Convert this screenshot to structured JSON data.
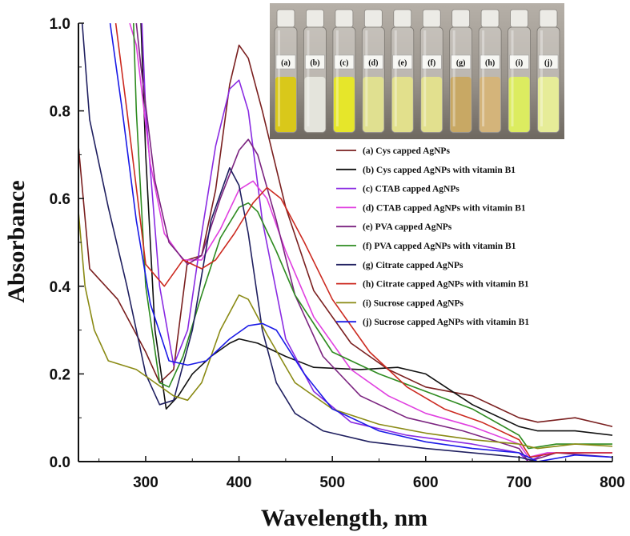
{
  "chart_data": {
    "type": "line",
    "title": "",
    "xlabel": "Wavelength, nm",
    "ylabel": "Absorbance",
    "xlim": [
      228,
      800
    ],
    "ylim": [
      0,
      1.0
    ],
    "x_ticks": [
      300,
      400,
      500,
      600,
      700,
      800
    ],
    "x_tick_labels": [
      "300",
      "400",
      "500",
      "600",
      "700",
      "800"
    ],
    "y_ticks": [
      0.0,
      0.2,
      0.4,
      0.6,
      0.8,
      1.0
    ],
    "y_tick_labels": [
      "0.0",
      "0.2",
      "0.4",
      "0.6",
      "0.8",
      "1.0"
    ],
    "grid": false,
    "legend_position": "right",
    "series": [
      {
        "name": "(a) Cys capped AgNPs",
        "color": "#7a1f1f",
        "points": [
          [
            228,
            0.72
          ],
          [
            240,
            0.44
          ],
          [
            270,
            0.37
          ],
          [
            300,
            0.25
          ],
          [
            315,
            0.18
          ],
          [
            330,
            0.21
          ],
          [
            345,
            0.46
          ],
          [
            360,
            0.47
          ],
          [
            375,
            0.62
          ],
          [
            390,
            0.86
          ],
          [
            400,
            0.95
          ],
          [
            410,
            0.92
          ],
          [
            425,
            0.8
          ],
          [
            450,
            0.58
          ],
          [
            480,
            0.39
          ],
          [
            520,
            0.27
          ],
          [
            560,
            0.21
          ],
          [
            600,
            0.17
          ],
          [
            650,
            0.15
          ],
          [
            700,
            0.1
          ],
          [
            720,
            0.09
          ],
          [
            760,
            0.1
          ],
          [
            790,
            0.085
          ],
          [
            800,
            0.08
          ]
        ]
      },
      {
        "name": "(b) Cys capped AgNPs with vitamin B1",
        "color": "#111111",
        "points": [
          [
            295,
            1.0
          ],
          [
            300,
            0.7
          ],
          [
            310,
            0.3
          ],
          [
            322,
            0.12
          ],
          [
            335,
            0.15
          ],
          [
            350,
            0.2
          ],
          [
            370,
            0.24
          ],
          [
            390,
            0.27
          ],
          [
            400,
            0.28
          ],
          [
            420,
            0.27
          ],
          [
            450,
            0.24
          ],
          [
            480,
            0.215
          ],
          [
            530,
            0.21
          ],
          [
            570,
            0.215
          ],
          [
            600,
            0.2
          ],
          [
            650,
            0.13
          ],
          [
            700,
            0.08
          ],
          [
            720,
            0.07
          ],
          [
            760,
            0.07
          ],
          [
            800,
            0.06
          ]
        ]
      },
      {
        "name": "(c) CTAB capped AgNPs",
        "color": "#8a2be2",
        "points": [
          [
            296,
            1.0
          ],
          [
            300,
            0.8
          ],
          [
            315,
            0.4
          ],
          [
            330,
            0.22
          ],
          [
            345,
            0.3
          ],
          [
            360,
            0.52
          ],
          [
            375,
            0.72
          ],
          [
            390,
            0.85
          ],
          [
            400,
            0.87
          ],
          [
            410,
            0.8
          ],
          [
            425,
            0.55
          ],
          [
            450,
            0.28
          ],
          [
            480,
            0.16
          ],
          [
            520,
            0.09
          ],
          [
            580,
            0.06
          ],
          [
            650,
            0.04
          ],
          [
            700,
            0.02
          ],
          [
            710,
            0.0
          ],
          [
            730,
            0.02
          ],
          [
            800,
            0.02
          ]
        ]
      },
      {
        "name": "(d) CTAB capped AgNPs with vitamin B1",
        "color": "#e040e0",
        "points": [
          [
            283,
            1.0
          ],
          [
            290,
            0.95
          ],
          [
            305,
            0.68
          ],
          [
            320,
            0.52
          ],
          [
            340,
            0.46
          ],
          [
            360,
            0.46
          ],
          [
            380,
            0.53
          ],
          [
            400,
            0.62
          ],
          [
            415,
            0.64
          ],
          [
            430,
            0.6
          ],
          [
            450,
            0.48
          ],
          [
            480,
            0.33
          ],
          [
            520,
            0.21
          ],
          [
            560,
            0.15
          ],
          [
            600,
            0.11
          ],
          [
            650,
            0.08
          ],
          [
            700,
            0.04
          ],
          [
            710,
            0.01
          ],
          [
            730,
            0.02
          ],
          [
            800,
            0.02
          ]
        ]
      },
      {
        "name": "(e) PVA capped AgNPs",
        "color": "#7b2480",
        "points": [
          [
            290,
            1.0
          ],
          [
            295,
            0.9
          ],
          [
            310,
            0.64
          ],
          [
            325,
            0.5
          ],
          [
            345,
            0.45
          ],
          [
            360,
            0.47
          ],
          [
            380,
            0.6
          ],
          [
            400,
            0.71
          ],
          [
            410,
            0.735
          ],
          [
            420,
            0.7
          ],
          [
            440,
            0.55
          ],
          [
            460,
            0.38
          ],
          [
            490,
            0.24
          ],
          [
            530,
            0.15
          ],
          [
            580,
            0.1
          ],
          [
            640,
            0.07
          ],
          [
            700,
            0.03
          ],
          [
            710,
            0.0
          ],
          [
            740,
            0.02
          ],
          [
            800,
            0.01
          ]
        ]
      },
      {
        "name": "(f) PVA capped AgNPs with vitamin B1",
        "color": "#2e8b20",
        "points": [
          [
            287,
            1.0
          ],
          [
            290,
            0.8
          ],
          [
            300,
            0.4
          ],
          [
            315,
            0.18
          ],
          [
            325,
            0.17
          ],
          [
            340,
            0.24
          ],
          [
            360,
            0.38
          ],
          [
            380,
            0.51
          ],
          [
            400,
            0.58
          ],
          [
            410,
            0.59
          ],
          [
            420,
            0.57
          ],
          [
            440,
            0.48
          ],
          [
            460,
            0.38
          ],
          [
            500,
            0.25
          ],
          [
            550,
            0.2
          ],
          [
            600,
            0.16
          ],
          [
            650,
            0.12
          ],
          [
            700,
            0.06
          ],
          [
            710,
            0.03
          ],
          [
            740,
            0.04
          ],
          [
            800,
            0.04
          ]
        ]
      },
      {
        "name": "(g) Citrate capped AgNPs",
        "color": "#202060",
        "points": [
          [
            232,
            1.0
          ],
          [
            240,
            0.78
          ],
          [
            260,
            0.58
          ],
          [
            280,
            0.4
          ],
          [
            300,
            0.2
          ],
          [
            315,
            0.13
          ],
          [
            330,
            0.14
          ],
          [
            350,
            0.3
          ],
          [
            370,
            0.55
          ],
          [
            390,
            0.67
          ],
          [
            400,
            0.63
          ],
          [
            410,
            0.52
          ],
          [
            425,
            0.3
          ],
          [
            440,
            0.18
          ],
          [
            460,
            0.11
          ],
          [
            490,
            0.07
          ],
          [
            540,
            0.045
          ],
          [
            600,
            0.03
          ],
          [
            700,
            0.01
          ],
          [
            720,
            0.0
          ],
          [
            800,
            0.0
          ]
        ]
      },
      {
        "name": "(h) Citrate capped AgNPs with vitamin B1",
        "color": "#cc2a20",
        "points": [
          [
            268,
            1.0
          ],
          [
            280,
            0.8
          ],
          [
            300,
            0.45
          ],
          [
            320,
            0.4
          ],
          [
            340,
            0.46
          ],
          [
            360,
            0.44
          ],
          [
            375,
            0.46
          ],
          [
            395,
            0.52
          ],
          [
            415,
            0.59
          ],
          [
            430,
            0.625
          ],
          [
            445,
            0.6
          ],
          [
            470,
            0.5
          ],
          [
            500,
            0.37
          ],
          [
            540,
            0.25
          ],
          [
            580,
            0.17
          ],
          [
            620,
            0.12
          ],
          [
            660,
            0.09
          ],
          [
            700,
            0.05
          ],
          [
            712,
            0.01
          ],
          [
            740,
            0.02
          ],
          [
            800,
            0.02
          ]
        ]
      },
      {
        "name": "(i) Sucrose capped AgNPs",
        "color": "#8a8a14",
        "points": [
          [
            228,
            0.57
          ],
          [
            235,
            0.4
          ],
          [
            245,
            0.3
          ],
          [
            260,
            0.23
          ],
          [
            290,
            0.21
          ],
          [
            310,
            0.18
          ],
          [
            330,
            0.15
          ],
          [
            345,
            0.14
          ],
          [
            360,
            0.18
          ],
          [
            380,
            0.3
          ],
          [
            400,
            0.38
          ],
          [
            410,
            0.37
          ],
          [
            430,
            0.29
          ],
          [
            460,
            0.18
          ],
          [
            500,
            0.12
          ],
          [
            550,
            0.085
          ],
          [
            600,
            0.065
          ],
          [
            650,
            0.05
          ],
          [
            700,
            0.04
          ],
          [
            720,
            0.03
          ],
          [
            760,
            0.04
          ],
          [
            800,
            0.035
          ]
        ]
      },
      {
        "name": "(j) Sucrose capped AgNPs with vitamin B1",
        "color": "#1a1ae6",
        "points": [
          [
            262,
            1.0
          ],
          [
            275,
            0.8
          ],
          [
            290,
            0.55
          ],
          [
            305,
            0.36
          ],
          [
            325,
            0.23
          ],
          [
            345,
            0.22
          ],
          [
            365,
            0.23
          ],
          [
            390,
            0.28
          ],
          [
            410,
            0.31
          ],
          [
            425,
            0.315
          ],
          [
            440,
            0.3
          ],
          [
            470,
            0.2
          ],
          [
            500,
            0.12
          ],
          [
            550,
            0.07
          ],
          [
            600,
            0.045
          ],
          [
            650,
            0.03
          ],
          [
            700,
            0.02
          ],
          [
            720,
            0.0
          ],
          [
            760,
            0.015
          ],
          [
            800,
            0.01
          ]
        ]
      }
    ]
  },
  "inset_photo": {
    "vials": [
      "(a)",
      "(b)",
      "(c)",
      "(d)",
      "(e)",
      "(f)",
      "(g)",
      "(h)",
      "(i)",
      "(j)"
    ],
    "liquid_colors": [
      "#d9c81a",
      "#e4e4dc",
      "#e6e62a",
      "#e0e090",
      "#e2e08c",
      "#e2e08e",
      "#c8a864",
      "#d4b47a",
      "#dcec60",
      "#e6ec98"
    ]
  }
}
